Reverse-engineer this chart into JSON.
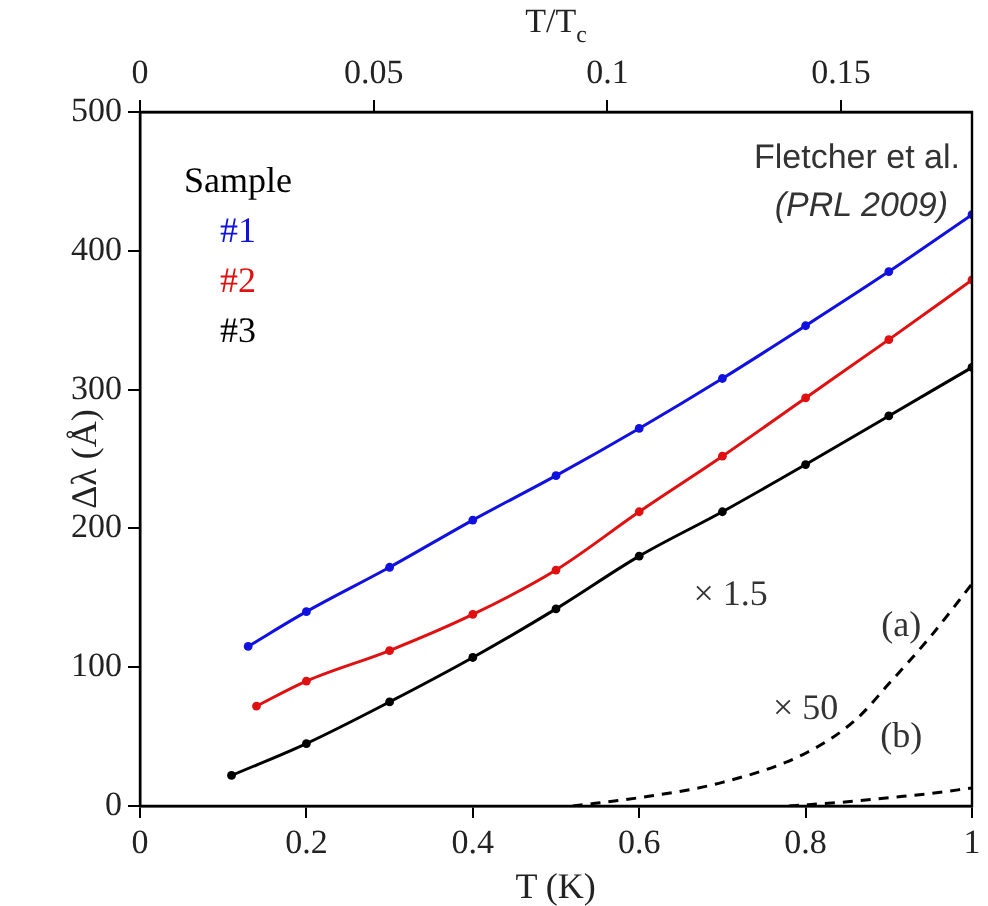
{
  "chart_data": {
    "type": "line",
    "xlabel": "T (K)",
    "ylabel": "Δλ (Å)",
    "x2label": "T/T$_{c}$",
    "legend_title": "Sample",
    "legend": "top left",
    "grid": false,
    "xlim": [
      0,
      1
    ],
    "xticks": [
      0,
      0.2,
      0.4,
      0.6,
      0.8,
      1
    ],
    "ylim": [
      0,
      500
    ],
    "yticks": [
      0,
      100,
      200,
      300,
      400,
      500
    ],
    "x2lim": [
      0,
      0.178
    ],
    "x2ticks": [
      0,
      0.05,
      0.1,
      0.15
    ],
    "series": [
      {
        "name": "#1",
        "color": "#1010e0",
        "marker": "circle",
        "line_style": "solid",
        "x": [
          0.13,
          0.2,
          0.3,
          0.4,
          0.5,
          0.6,
          0.7,
          0.8,
          0.9,
          1.0
        ],
        "values": [
          115,
          140,
          172,
          206,
          238,
          272,
          308,
          346,
          385,
          426
        ]
      },
      {
        "name": "#2",
        "color": "#e01010",
        "marker": "circle",
        "line_style": "solid",
        "x": [
          0.14,
          0.2,
          0.3,
          0.4,
          0.5,
          0.6,
          0.7,
          0.8,
          0.9,
          1.0
        ],
        "values": [
          72,
          90,
          112,
          138,
          170,
          212,
          252,
          294,
          336,
          379
        ]
      },
      {
        "name": "#3",
        "color": "#000000",
        "marker": "circle",
        "line_style": "solid",
        "x": [
          0.11,
          0.2,
          0.3,
          0.4,
          0.5,
          0.6,
          0.7,
          0.8,
          0.9,
          1.0
        ],
        "values": [
          22,
          45,
          75,
          107,
          142,
          180,
          212,
          246,
          281,
          316
        ]
      },
      {
        "color": "#000000",
        "marker": "none",
        "line_style": "dashed",
        "x": [
          0.52,
          0.6,
          0.7,
          0.8,
          0.86,
          0.9,
          0.95,
          1.0
        ],
        "values": [
          0,
          6,
          17,
          38,
          62,
          88,
          122,
          160
        ]
      },
      {
        "color": "#000000",
        "marker": "none",
        "line_style": "dashed",
        "x": [
          0.78,
          0.85,
          0.9,
          0.95,
          1.0
        ],
        "values": [
          0,
          3,
          6,
          9,
          13
        ]
      }
    ],
    "annotations": [
      "Fletcher et al. (PRL 2009)",
      "× 1.5",
      "(a)",
      "× 50",
      "(b)"
    ]
  }
}
